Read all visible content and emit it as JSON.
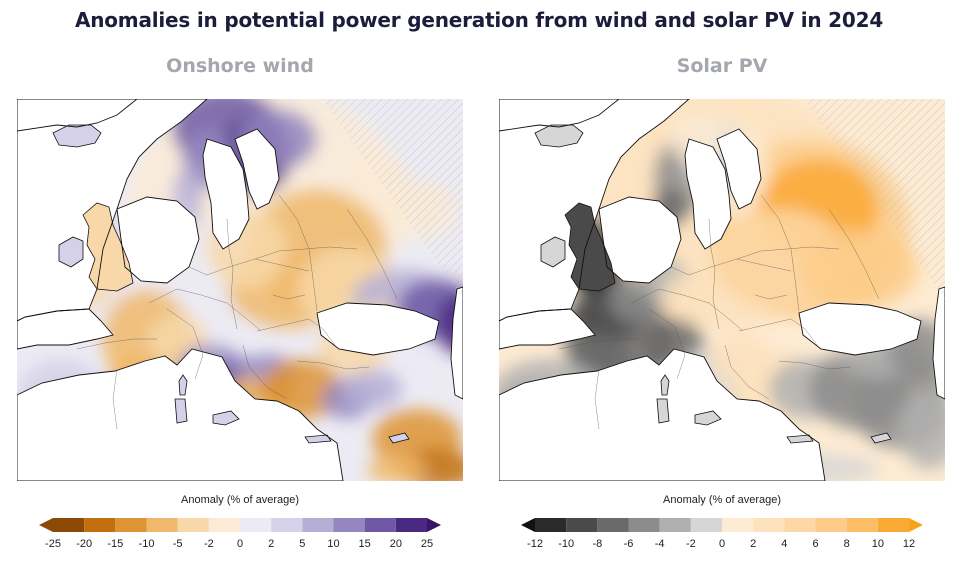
{
  "title": "Anomalies in potential power generation from wind and solar PV in 2024",
  "panels": [
    {
      "id": "wind",
      "title": "Onshore wind",
      "legend_title": "Anomaly (% of average)",
      "tick_labels": [
        "-25",
        "-20",
        "-15",
        "-10",
        "-5",
        "-2",
        "0",
        "2",
        "5",
        "10",
        "15",
        "20",
        "25"
      ],
      "colors": [
        "#8c4a06",
        "#c2700f",
        "#dd9433",
        "#f0b86a",
        "#f8d8a8",
        "#fbebd6",
        "#ecebf4",
        "#d4d1e8",
        "#b5afd6",
        "#9487c0",
        "#6f59a6",
        "#4a2a80"
      ],
      "low_arrow": "#8c4a06",
      "high_arrow": "#3a1566"
    },
    {
      "id": "solar",
      "title": "Solar PV",
      "legend_title": "Anomaly (% of average)",
      "tick_labels": [
        "-12",
        "-10",
        "-8",
        "-6",
        "-4",
        "-2",
        "0",
        "2",
        "4",
        "6",
        "8",
        "10",
        "12"
      ],
      "colors": [
        "#2a2a2a",
        "#4a4a4a",
        "#6a6a6a",
        "#8c8c8c",
        "#b0b0b0",
        "#d6d6d6",
        "#fdebd3",
        "#fde2bd",
        "#fdd8a6",
        "#fdcc8a",
        "#fdbd67",
        "#fba935"
      ],
      "low_arrow": "#111111",
      "high_arrow": "#f7a21b"
    }
  ]
}
